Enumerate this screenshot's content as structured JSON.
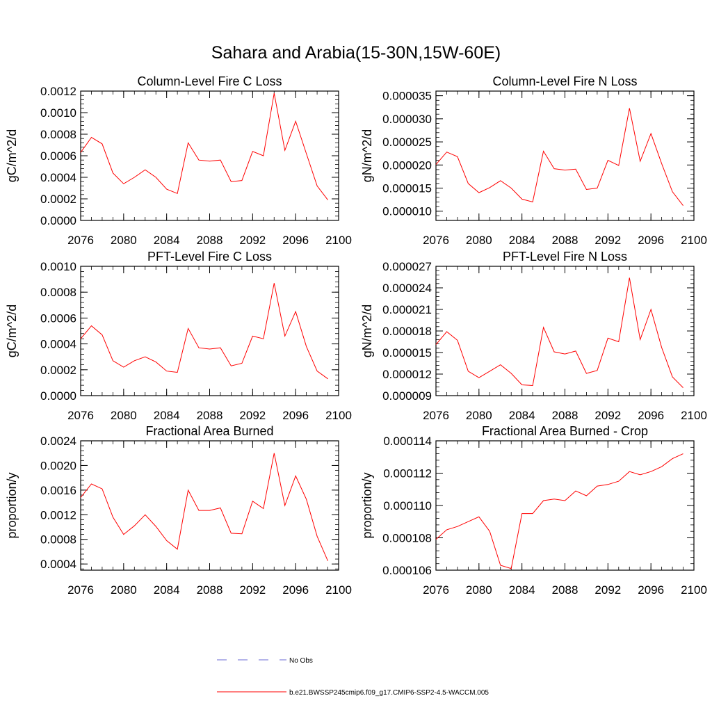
{
  "figure_title": "Sahara and Arabia(15-30N,15W-60E)",
  "legend": {
    "entries": [
      {
        "label": "No Obs",
        "color": "#6b6bd6",
        "style": "dashed"
      },
      {
        "label": "b.e21.BWSSP245cmip6.f09_g17.CMIP6-SSP2-4.5-WACCM.005",
        "color": "#ff0000",
        "style": "solid"
      }
    ]
  },
  "chart_data": [
    {
      "type": "line",
      "title": "Column-Level Fire C Loss",
      "xlabel": "",
      "ylabel": "gC/m^2/d",
      "xlim": [
        2076,
        2100
      ],
      "ylim": [
        0,
        0.0012
      ],
      "xticks": [
        2076,
        2080,
        2084,
        2088,
        2092,
        2096,
        2100
      ],
      "yticks": [
        0,
        0.0002,
        0.0004,
        0.0006,
        0.0008,
        0.001,
        0.0012
      ],
      "ytick_labels": [
        "0.0000",
        "0.0002",
        "0.0004",
        "0.0006",
        "0.0008",
        "0.0010",
        "0.0012"
      ],
      "x": [
        2076,
        2077,
        2078,
        2079,
        2080,
        2081,
        2082,
        2083,
        2084,
        2085,
        2086,
        2087,
        2088,
        2089,
        2090,
        2091,
        2092,
        2093,
        2094,
        2095,
        2096,
        2097,
        2098,
        2099
      ],
      "series": [
        {
          "name": "b.e21.BWSSP245cmip6.f09_g17.CMIP6-SSP2-4.5-WACCM.005",
          "color": "#ff0000",
          "values": [
            0.00063,
            0.00077,
            0.00071,
            0.00044,
            0.00034,
            0.0004,
            0.00047,
            0.0004,
            0.00029,
            0.00025,
            0.00072,
            0.00056,
            0.00055,
            0.00056,
            0.00036,
            0.00037,
            0.00064,
            0.0006,
            0.00118,
            0.00065,
            0.00092,
            0.00062,
            0.00032,
            0.00019
          ]
        }
      ]
    },
    {
      "type": "line",
      "title": "Column-Level Fire N Loss",
      "xlabel": "",
      "ylabel": "gN/m^2/d",
      "xlim": [
        2076,
        2100
      ],
      "ylim": [
        8e-06,
        3.6e-05
      ],
      "xticks": [
        2076,
        2080,
        2084,
        2088,
        2092,
        2096,
        2100
      ],
      "yticks": [
        1e-05,
        1.5e-05,
        2e-05,
        2.5e-05,
        3e-05,
        3.5e-05
      ],
      "ytick_labels": [
        "0.000010",
        "0.000015",
        "0.000020",
        "0.000025",
        "0.000030",
        "0.000035"
      ],
      "x": [
        2076,
        2077,
        2078,
        2079,
        2080,
        2081,
        2082,
        2083,
        2084,
        2085,
        2086,
        2087,
        2088,
        2089,
        2090,
        2091,
        2092,
        2093,
        2094,
        2095,
        2096,
        2097,
        2098,
        2099
      ],
      "series": [
        {
          "name": "b.e21.BWSSP245cmip6.f09_g17.CMIP6-SSP2-4.5-WACCM.005",
          "color": "#ff0000",
          "values": [
            2.01e-05,
            2.28e-05,
            2.18e-05,
            1.6e-05,
            1.4e-05,
            1.51e-05,
            1.66e-05,
            1.5e-05,
            1.26e-05,
            1.2e-05,
            2.3e-05,
            1.92e-05,
            1.89e-05,
            1.91e-05,
            1.47e-05,
            1.5e-05,
            2.1e-05,
            1.99e-05,
            3.23e-05,
            2.08e-05,
            2.68e-05,
            2.03e-05,
            1.42e-05,
            1.12e-05
          ]
        }
      ]
    },
    {
      "type": "line",
      "title": "PFT-Level Fire C Loss",
      "xlabel": "",
      "ylabel": "gC/m^2/d",
      "xlim": [
        2076,
        2100
      ],
      "ylim": [
        0,
        0.001
      ],
      "xticks": [
        2076,
        2080,
        2084,
        2088,
        2092,
        2096,
        2100
      ],
      "yticks": [
        0,
        0.0002,
        0.0004,
        0.0006,
        0.0008,
        0.001
      ],
      "ytick_labels": [
        "0.0000",
        "0.0002",
        "0.0004",
        "0.0006",
        "0.0008",
        "0.0010"
      ],
      "x": [
        2076,
        2077,
        2078,
        2079,
        2080,
        2081,
        2082,
        2083,
        2084,
        2085,
        2086,
        2087,
        2088,
        2089,
        2090,
        2091,
        2092,
        2093,
        2094,
        2095,
        2096,
        2097,
        2098,
        2099
      ],
      "series": [
        {
          "name": "b.e21.BWSSP245cmip6.f09_g17.CMIP6-SSP2-4.5-WACCM.005",
          "color": "#ff0000",
          "values": [
            0.00044,
            0.00054,
            0.00047,
            0.00027,
            0.00022,
            0.00027,
            0.0003,
            0.00026,
            0.00019,
            0.00018,
            0.00052,
            0.00037,
            0.00036,
            0.00037,
            0.00023,
            0.00025,
            0.00046,
            0.00044,
            0.00087,
            0.00046,
            0.00065,
            0.00038,
            0.00019,
            0.00013
          ]
        }
      ]
    },
    {
      "type": "line",
      "title": "PFT-Level Fire N Loss",
      "xlabel": "",
      "ylabel": "gN/m^2/d",
      "xlim": [
        2076,
        2100
      ],
      "ylim": [
        9e-06,
        2.7e-05
      ],
      "xticks": [
        2076,
        2080,
        2084,
        2088,
        2092,
        2096,
        2100
      ],
      "yticks": [
        9e-06,
        1.2e-05,
        1.5e-05,
        1.8e-05,
        2.1e-05,
        2.4e-05,
        2.7e-05
      ],
      "ytick_labels": [
        "0.000009",
        "0.000012",
        "0.000015",
        "0.000018",
        "0.000021",
        "0.000024",
        "0.000027"
      ],
      "x": [
        2076,
        2077,
        2078,
        2079,
        2080,
        2081,
        2082,
        2083,
        2084,
        2085,
        2086,
        2087,
        2088,
        2089,
        2090,
        2091,
        2092,
        2093,
        2094,
        2095,
        2096,
        2097,
        2098,
        2099
      ],
      "series": [
        {
          "name": "b.e21.BWSSP245cmip6.f09_g17.CMIP6-SSP2-4.5-WACCM.005",
          "color": "#ff0000",
          "values": [
            1.61e-05,
            1.79e-05,
            1.67e-05,
            1.24e-05,
            1.15e-05,
            1.24e-05,
            1.33e-05,
            1.21e-05,
            1.05e-05,
            1.04e-05,
            1.85e-05,
            1.51e-05,
            1.48e-05,
            1.52e-05,
            1.21e-05,
            1.25e-05,
            1.7e-05,
            1.65e-05,
            2.54e-05,
            1.68e-05,
            2.1e-05,
            1.57e-05,
            1.16e-05,
            1.01e-05
          ]
        }
      ]
    },
    {
      "type": "line",
      "title": "Fractional Area Burned",
      "xlabel": "",
      "ylabel": "proportion/y",
      "xlim": [
        2076,
        2100
      ],
      "ylim": [
        0.0003,
        0.0024
      ],
      "xticks": [
        2076,
        2080,
        2084,
        2088,
        2092,
        2096,
        2100
      ],
      "yticks": [
        0.0004,
        0.0008,
        0.0012,
        0.0016,
        0.002,
        0.0024
      ],
      "ytick_labels": [
        "0.0004",
        "0.0008",
        "0.0012",
        "0.0016",
        "0.0020",
        "0.0024"
      ],
      "x": [
        2076,
        2077,
        2078,
        2079,
        2080,
        2081,
        2082,
        2083,
        2084,
        2085,
        2086,
        2087,
        2088,
        2089,
        2090,
        2091,
        2092,
        2093,
        2094,
        2095,
        2096,
        2097,
        2098,
        2099
      ],
      "series": [
        {
          "name": "b.e21.BWSSP245cmip6.f09_g17.CMIP6-SSP2-4.5-WACCM.005",
          "color": "#ff0000",
          "values": [
            0.00148,
            0.0017,
            0.00162,
            0.00116,
            0.00088,
            0.00102,
            0.0012,
            0.00101,
            0.00078,
            0.00064,
            0.0016,
            0.00127,
            0.00127,
            0.00131,
            0.0009,
            0.00089,
            0.00142,
            0.0013,
            0.0022,
            0.00135,
            0.00183,
            0.00145,
            0.00085,
            0.00045
          ]
        }
      ]
    },
    {
      "type": "line",
      "title": "Fractional Area Burned - Crop",
      "xlabel": "",
      "ylabel": "proportion/y",
      "xlim": [
        2076,
        2100
      ],
      "ylim": [
        0.000106,
        0.000114
      ],
      "xticks": [
        2076,
        2080,
        2084,
        2088,
        2092,
        2096,
        2100
      ],
      "yticks": [
        0.000106,
        0.000108,
        0.00011,
        0.000112,
        0.000114
      ],
      "ytick_labels": [
        "0.000106",
        "0.000108",
        "0.000110",
        "0.000112",
        "0.000114"
      ],
      "x": [
        2076,
        2077,
        2078,
        2079,
        2080,
        2081,
        2082,
        2083,
        2084,
        2085,
        2086,
        2087,
        2088,
        2089,
        2090,
        2091,
        2092,
        2093,
        2094,
        2095,
        2096,
        2097,
        2098,
        2099
      ],
      "series": [
        {
          "name": "b.e21.BWSSP245cmip6.f09_g17.CMIP6-SSP2-4.5-WACCM.005",
          "color": "#ff0000",
          "values": [
            0.0001079,
            0.0001085,
            0.0001087,
            0.000109,
            0.0001093,
            0.0001084,
            0.0001063,
            0.0001061,
            0.0001095,
            0.0001095,
            0.0001103,
            0.0001104,
            0.0001103,
            0.0001109,
            0.0001106,
            0.0001112,
            0.0001113,
            0.0001115,
            0.0001121,
            0.0001119,
            0.0001121,
            0.0001124,
            0.0001129,
            0.0001132
          ]
        }
      ]
    }
  ]
}
